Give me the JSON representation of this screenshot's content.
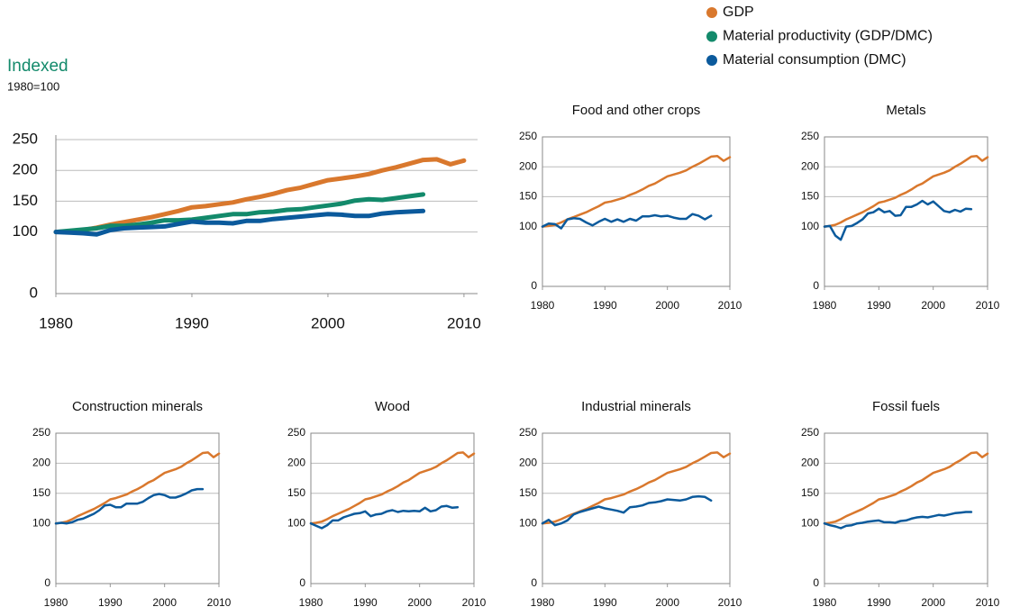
{
  "chart_data": [
    {
      "type": "line",
      "y_label": "Indexed",
      "subtitle": "1980=100",
      "legend": "top-right",
      "x": [
        1980,
        1981,
        1982,
        1983,
        1984,
        1985,
        1986,
        1987,
        1988,
        1989,
        1990,
        1991,
        1992,
        1993,
        1994,
        1995,
        1996,
        1997,
        1998,
        1999,
        2000,
        2001,
        2002,
        2003,
        2004,
        2005,
        2006,
        2007,
        2008,
        2009,
        2010
      ],
      "xlim": [
        1980,
        2011
      ],
      "xticks": [
        1980,
        1990,
        2000,
        2010
      ],
      "ylim": [
        0,
        250
      ],
      "yticks": [
        0,
        100,
        150,
        200,
        250
      ],
      "grid": true,
      "series": [
        {
          "name": "GDP",
          "color": "#d9782d",
          "values": [
            100,
            101,
            103,
            107,
            112,
            116,
            120,
            124,
            129,
            134,
            140,
            142,
            145,
            148,
            153,
            157,
            162,
            168,
            172,
            178,
            184,
            187,
            190,
            194,
            200,
            205,
            211,
            217,
            218,
            210,
            216
          ]
        },
        {
          "name": "Material productivity (GDP/DMC)",
          "color": "#138a6b",
          "values": [
            100,
            102,
            104,
            106,
            110,
            110,
            112,
            115,
            119,
            119,
            120,
            123,
            126,
            129,
            129,
            132,
            133,
            136,
            137,
            140,
            143,
            146,
            151,
            153,
            152,
            155,
            158,
            161,
            null,
            null,
            null
          ]
        },
        {
          "name": "Material consumption (DMC)",
          "color": "#0b5a9c",
          "values": [
            100,
            99,
            98,
            96,
            103,
            106,
            107,
            108,
            109,
            113,
            117,
            115,
            115,
            114,
            118,
            118,
            121,
            123,
            125,
            127,
            129,
            128,
            126,
            126,
            130,
            132,
            133,
            134,
            null,
            null,
            null
          ]
        }
      ]
    },
    {
      "type": "line",
      "title": "Food and other crops",
      "x": [
        1980,
        1981,
        1982,
        1983,
        1984,
        1985,
        1986,
        1987,
        1988,
        1989,
        1990,
        1991,
        1992,
        1993,
        1994,
        1995,
        1996,
        1997,
        1998,
        1999,
        2000,
        2001,
        2002,
        2003,
        2004,
        2005,
        2006,
        2007,
        2008,
        2009,
        2010
      ],
      "xlim": [
        1980,
        2010
      ],
      "xticks": [
        1980,
        1990,
        2000,
        2010
      ],
      "ylim": [
        0,
        250
      ],
      "yticks": [
        0,
        100,
        150,
        200,
        250
      ],
      "grid": true,
      "series": [
        {
          "color": "#d9782d",
          "values": [
            100,
            101,
            103,
            107,
            112,
            116,
            120,
            124,
            129,
            134,
            140,
            142,
            145,
            148,
            153,
            157,
            162,
            168,
            172,
            178,
            184,
            187,
            190,
            194,
            200,
            205,
            211,
            217,
            218,
            210,
            216
          ]
        },
        {
          "color": "#0b5a9c",
          "values": [
            100,
            105,
            104,
            97,
            112,
            114,
            113,
            107,
            102,
            108,
            113,
            108,
            112,
            108,
            113,
            110,
            117,
            117,
            119,
            117,
            118,
            115,
            113,
            113,
            121,
            118,
            112,
            118,
            null,
            null,
            null
          ]
        }
      ]
    },
    {
      "type": "line",
      "title": "Metals",
      "x": [
        1980,
        1981,
        1982,
        1983,
        1984,
        1985,
        1986,
        1987,
        1988,
        1989,
        1990,
        1991,
        1992,
        1993,
        1994,
        1995,
        1996,
        1997,
        1998,
        1999,
        2000,
        2001,
        2002,
        2003,
        2004,
        2005,
        2006,
        2007,
        2008,
        2009,
        2010
      ],
      "xlim": [
        1980,
        2010
      ],
      "xticks": [
        1980,
        1990,
        2000,
        2010
      ],
      "ylim": [
        0,
        250
      ],
      "yticks": [
        0,
        100,
        150,
        200,
        250
      ],
      "grid": true,
      "series": [
        {
          "color": "#d9782d",
          "values": [
            100,
            101,
            103,
            107,
            112,
            116,
            120,
            124,
            129,
            134,
            140,
            142,
            145,
            148,
            153,
            157,
            162,
            168,
            172,
            178,
            184,
            187,
            190,
            194,
            200,
            205,
            211,
            217,
            218,
            210,
            216
          ]
        },
        {
          "color": "#0b5a9c",
          "values": [
            100,
            101,
            85,
            78,
            100,
            101,
            106,
            112,
            122,
            124,
            130,
            124,
            126,
            118,
            119,
            133,
            133,
            137,
            143,
            137,
            142,
            134,
            126,
            124,
            128,
            125,
            130,
            129,
            null,
            null,
            null
          ]
        }
      ]
    },
    {
      "type": "line",
      "title": "Construction minerals",
      "x": [
        1980,
        1981,
        1982,
        1983,
        1984,
        1985,
        1986,
        1987,
        1988,
        1989,
        1990,
        1991,
        1992,
        1993,
        1994,
        1995,
        1996,
        1997,
        1998,
        1999,
        2000,
        2001,
        2002,
        2003,
        2004,
        2005,
        2006,
        2007,
        2008,
        2009,
        2010
      ],
      "xlim": [
        1980,
        2010
      ],
      "xticks": [
        1980,
        1990,
        2000,
        2010
      ],
      "ylim": [
        0,
        250
      ],
      "yticks": [
        0,
        100,
        150,
        200,
        250
      ],
      "grid": true,
      "series": [
        {
          "color": "#d9782d",
          "values": [
            100,
            101,
            103,
            107,
            112,
            116,
            120,
            124,
            129,
            134,
            140,
            142,
            145,
            148,
            153,
            157,
            162,
            168,
            172,
            178,
            184,
            187,
            190,
            194,
            200,
            205,
            211,
            217,
            218,
            210,
            216
          ]
        },
        {
          "color": "#0b5a9c",
          "values": [
            100,
            101,
            100,
            102,
            106,
            108,
            112,
            116,
            122,
            130,
            131,
            127,
            127,
            133,
            133,
            133,
            136,
            142,
            147,
            149,
            147,
            143,
            143,
            146,
            150,
            155,
            157,
            157,
            null,
            null,
            null
          ]
        }
      ]
    },
    {
      "type": "line",
      "title": "Wood",
      "x": [
        1980,
        1981,
        1982,
        1983,
        1984,
        1985,
        1986,
        1987,
        1988,
        1989,
        1990,
        1991,
        1992,
        1993,
        1994,
        1995,
        1996,
        1997,
        1998,
        1999,
        2000,
        2001,
        2002,
        2003,
        2004,
        2005,
        2006,
        2007,
        2008,
        2009,
        2010
      ],
      "xlim": [
        1980,
        2010
      ],
      "xticks": [
        1980,
        1990,
        2000,
        2010
      ],
      "ylim": [
        0,
        250
      ],
      "yticks": [
        0,
        100,
        150,
        200,
        250
      ],
      "grid": true,
      "series": [
        {
          "color": "#d9782d",
          "values": [
            100,
            101,
            103,
            107,
            112,
            116,
            120,
            124,
            129,
            134,
            140,
            142,
            145,
            148,
            153,
            157,
            162,
            168,
            172,
            178,
            184,
            187,
            190,
            194,
            200,
            205,
            211,
            217,
            218,
            210,
            216
          ]
        },
        {
          "color": "#0b5a9c",
          "values": [
            100,
            96,
            92,
            97,
            105,
            105,
            110,
            113,
            116,
            117,
            120,
            112,
            115,
            116,
            120,
            122,
            119,
            121,
            120,
            121,
            120,
            126,
            120,
            122,
            128,
            129,
            126,
            127,
            null,
            null,
            null
          ]
        }
      ]
    },
    {
      "type": "line",
      "title": "Industrial minerals",
      "x": [
        1980,
        1981,
        1982,
        1983,
        1984,
        1985,
        1986,
        1987,
        1988,
        1989,
        1990,
        1991,
        1992,
        1993,
        1994,
        1995,
        1996,
        1997,
        1998,
        1999,
        2000,
        2001,
        2002,
        2003,
        2004,
        2005,
        2006,
        2007,
        2008,
        2009,
        2010
      ],
      "xlim": [
        1980,
        2010
      ],
      "xticks": [
        1980,
        1990,
        2000,
        2010
      ],
      "ylim": [
        0,
        250
      ],
      "yticks": [
        0,
        100,
        150,
        200,
        250
      ],
      "grid": true,
      "series": [
        {
          "color": "#d9782d",
          "values": [
            100,
            101,
            103,
            107,
            112,
            116,
            120,
            124,
            129,
            134,
            140,
            142,
            145,
            148,
            153,
            157,
            162,
            168,
            172,
            178,
            184,
            187,
            190,
            194,
            200,
            205,
            211,
            217,
            218,
            210,
            216
          ]
        },
        {
          "color": "#0b5a9c",
          "values": [
            100,
            106,
            97,
            100,
            105,
            115,
            119,
            122,
            125,
            128,
            125,
            123,
            121,
            118,
            127,
            128,
            130,
            134,
            135,
            137,
            140,
            139,
            138,
            140,
            144,
            145,
            144,
            138,
            null,
            null,
            null
          ]
        }
      ]
    },
    {
      "type": "line",
      "title": "Fossil fuels",
      "x": [
        1980,
        1981,
        1982,
        1983,
        1984,
        1985,
        1986,
        1987,
        1988,
        1989,
        1990,
        1991,
        1992,
        1993,
        1994,
        1995,
        1996,
        1997,
        1998,
        1999,
        2000,
        2001,
        2002,
        2003,
        2004,
        2005,
        2006,
        2007,
        2008,
        2009,
        2010
      ],
      "xlim": [
        1980,
        2010
      ],
      "xticks": [
        1980,
        1990,
        2000,
        2010
      ],
      "ylim": [
        0,
        250
      ],
      "yticks": [
        0,
        100,
        150,
        200,
        250
      ],
      "grid": true,
      "series": [
        {
          "color": "#d9782d",
          "values": [
            100,
            101,
            103,
            107,
            112,
            116,
            120,
            124,
            129,
            134,
            140,
            142,
            145,
            148,
            153,
            157,
            162,
            168,
            172,
            178,
            184,
            187,
            190,
            194,
            200,
            205,
            211,
            217,
            218,
            210,
            216
          ]
        },
        {
          "color": "#0b5a9c",
          "values": [
            100,
            97,
            95,
            92,
            96,
            97,
            100,
            101,
            103,
            104,
            105,
            102,
            102,
            101,
            104,
            105,
            108,
            110,
            111,
            110,
            112,
            114,
            113,
            115,
            117,
            118,
            119,
            119,
            null,
            null,
            null
          ]
        }
      ]
    }
  ]
}
